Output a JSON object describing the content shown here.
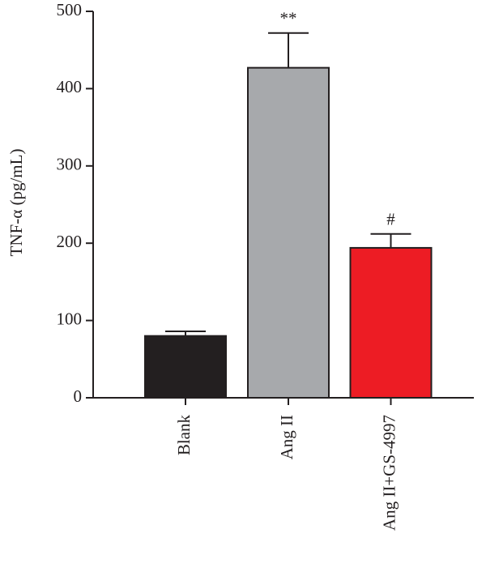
{
  "chart_data": {
    "type": "bar",
    "ylabel": "TNF-α (pg/mL)",
    "categories": [
      "Blank",
      "Ang II",
      "Ang II+GS-4997"
    ],
    "values": [
      80,
      427,
      194
    ],
    "errors": [
      6,
      45,
      18
    ],
    "colors": [
      "#231f20",
      "#a7a9ac",
      "#ed1c24"
    ],
    "annotations": [
      null,
      "**",
      "#"
    ],
    "ylim": [
      0,
      500
    ],
    "yticks": [
      0,
      100,
      200,
      300,
      400,
      500
    ],
    "grid": false
  }
}
